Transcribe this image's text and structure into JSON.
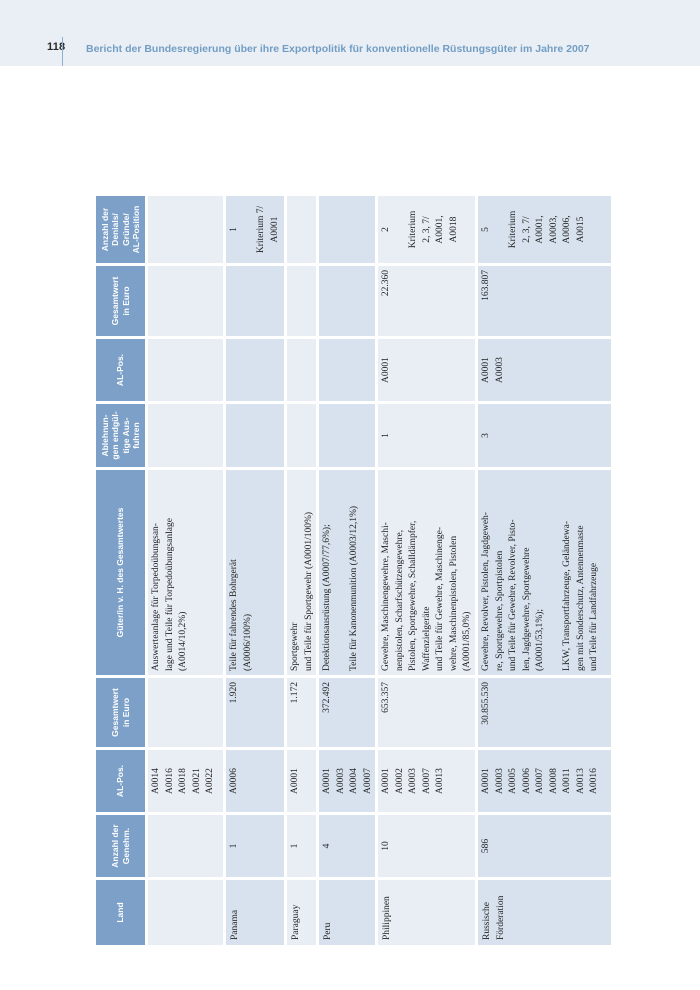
{
  "page": {
    "number": "118",
    "title": "Bericht der Bundesregierung über ihre Exportpolitik für konventionelle Rüstungsgüter im Jahre 2007"
  },
  "colors": {
    "band_background": "#e9eff5",
    "title_blue": "#729dc4",
    "table_header_blue": "#7da0c8",
    "row_light": "#e9eef5",
    "row_dark": "#d8e2ee"
  },
  "table": {
    "orientation": "rotated-90-ccw",
    "headers": [
      "Land",
      "Anzahl der\nGenehm.",
      "AL-Pos.",
      "Gesamtwert\nin Euro",
      "Güter/in v. H. des Gesamtwertes",
      "Ablehnun-\ngen endgül-\ntige Aus-\nfuhren",
      "AL-Pos.",
      "Gesamtwert\nin Euro",
      "Anzahl der\nDenials/\nGründe/\nAL-Position"
    ],
    "rows": [
      {
        "land": "",
        "anzahl_genehm": "",
        "al_pos": "A0014\nA0016\nA0018\nA0021\nA0022",
        "gesamtwert": "",
        "gueter": "Auswerteanlage für Torpedoübungsan-\nlage und Teile für Torpedoübungsanlage\n(A0014/10,2%)",
        "ablehnungen": "",
        "al_pos_denials": "",
        "gesamtwert_denials": "",
        "denials": ""
      },
      {
        "land": "Panama",
        "anzahl_genehm": "1",
        "al_pos": "A0006",
        "gesamtwert": "1.920",
        "gueter": "Teile für fahrendes Bohrgerät\n(A0006/100%)",
        "ablehnungen": "",
        "al_pos_denials": "",
        "gesamtwert_denials": "",
        "denials": "1\n\nKriterium 7/\nA0001"
      },
      {
        "land": "Paraguay",
        "anzahl_genehm": "1",
        "al_pos": "A0001",
        "gesamtwert": "1.172",
        "gueter": "Sportgewehr\nund Teile für Sportgewehr (A0001/100%)",
        "ablehnungen": "",
        "al_pos_denials": "",
        "gesamtwert_denials": "",
        "denials": ""
      },
      {
        "land": "Peru",
        "anzahl_genehm": "4",
        "al_pos": "A0001\nA0003\nA0004\nA0007",
        "gesamtwert": "372.492",
        "gueter": "Detektionsausrüstung (A0007/77,6%);\n\nTeile für Kanonenmunition (A0003/12,1%)",
        "ablehnungen": "",
        "al_pos_denials": "",
        "gesamtwert_denials": "",
        "denials": ""
      },
      {
        "land": "Philippinen",
        "anzahl_genehm": "10",
        "al_pos": "A0001\nA0002\nA0003\nA0007\nA0013",
        "gesamtwert": "653.357",
        "gueter": "Gewehre, Maschinengewehre, Maschi-\nnenpistolen, Scharfschützengewehre,\nPistolen, Sportgewehre, Schalldämpfer,\nWaffenzielgeräte\nund Teile für Gewehre, Maschinenge-\nwehre, Maschinenpistolen, Pistolen\n(A0001/85,0%)",
        "ablehnungen": "1",
        "al_pos_denials": "A0001",
        "gesamtwert_denials": "22.360",
        "denials": "2\n\nKriterium\n2, 3, 7/\nA0001,\nA0018"
      },
      {
        "land": "Russische\nFörderation",
        "anzahl_genehm": "586",
        "al_pos": "A0001\nA0003\nA0005\nA0006\nA0007\nA0008\nA0011\nA0013\nA0016",
        "gesamtwert": "30.855.530",
        "gueter": "Gewehre, Revolver, Pistolen, Jagdgeweh-\nre, Sportgewehre, Sportpistolen\nund Teile für Gewehre, Revolver, Pisto-\nlen, Jagdgewehre, Sportgewehre\n(A0001/53,1%);\n\nLKW, Transportfahrzeuge, Geländewa-\ngen mit Sonderschutz, Antennenmaste\nund Teile für Landfahrzeuge",
        "ablehnungen": "3",
        "al_pos_denials": "A0001\nA0003",
        "gesamtwert_denials": "163.807",
        "denials": "5\n\nKriterium\n2, 3, 7/\nA0001,\nA0003,\nA0006,\nA0015"
      }
    ]
  }
}
